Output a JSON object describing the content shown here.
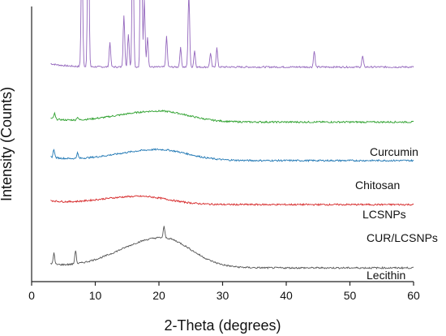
{
  "chart_data": {
    "type": "line",
    "title": "",
    "xlabel": "2-Theta (degrees)",
    "ylabel": "Intensity (Counts)",
    "xlim": [
      0,
      60
    ],
    "xticks": [
      0,
      10,
      20,
      30,
      40,
      50,
      60
    ],
    "grid": false,
    "legend": "none",
    "yticks": "none",
    "series": [
      {
        "name": "Curcumin",
        "color": "#9467bd",
        "baseline_level": 0.78,
        "x_range": [
          3,
          60
        ],
        "peaks": [
          [
            7.9,
            0.44
          ],
          [
            8.9,
            0.63
          ],
          [
            12.3,
            0.09
          ],
          [
            14.5,
            0.19
          ],
          [
            15.2,
            0.12
          ],
          [
            15.9,
            0.53
          ],
          [
            17.2,
            0.83
          ],
          [
            17.7,
            0.25
          ],
          [
            18.2,
            0.11
          ],
          [
            21.2,
            0.11
          ],
          [
            23.4,
            0.07
          ],
          [
            24.7,
            0.27
          ],
          [
            25.6,
            0.06
          ],
          [
            28.1,
            0.05
          ],
          [
            29.1,
            0.07
          ],
          [
            44.4,
            0.06
          ],
          [
            52.0,
            0.04
          ]
        ]
      },
      {
        "name": "Chitosan",
        "color": "#2ca02c",
        "baseline_level": 0.58,
        "x_range": [
          3,
          60
        ],
        "hump": [
          20,
          0.04
        ],
        "peaks": [
          [
            3.6,
            0.02
          ],
          [
            7.2,
            0.01
          ]
        ]
      },
      {
        "name": "LCSNPs",
        "color": "#1f77b4",
        "baseline_level": 0.44,
        "x_range": [
          3,
          60
        ],
        "hump": [
          20,
          0.04
        ],
        "peaks": [
          [
            3.5,
            0.03
          ],
          [
            7.2,
            0.02
          ]
        ]
      },
      {
        "name": "CUR/LCSNPs",
        "color": "#d62728",
        "baseline_level": 0.28,
        "x_range": [
          3,
          60
        ],
        "hump": [
          17,
          0.03
        ],
        "peaks": []
      },
      {
        "name": "Lecithin",
        "color": "#555555",
        "baseline_level": 0.05,
        "x_range": [
          3,
          60
        ],
        "hump": [
          20.5,
          0.11
        ],
        "peaks": [
          [
            3.5,
            0.04
          ],
          [
            6.9,
            0.05
          ],
          [
            20.8,
            0.04
          ]
        ]
      }
    ]
  }
}
